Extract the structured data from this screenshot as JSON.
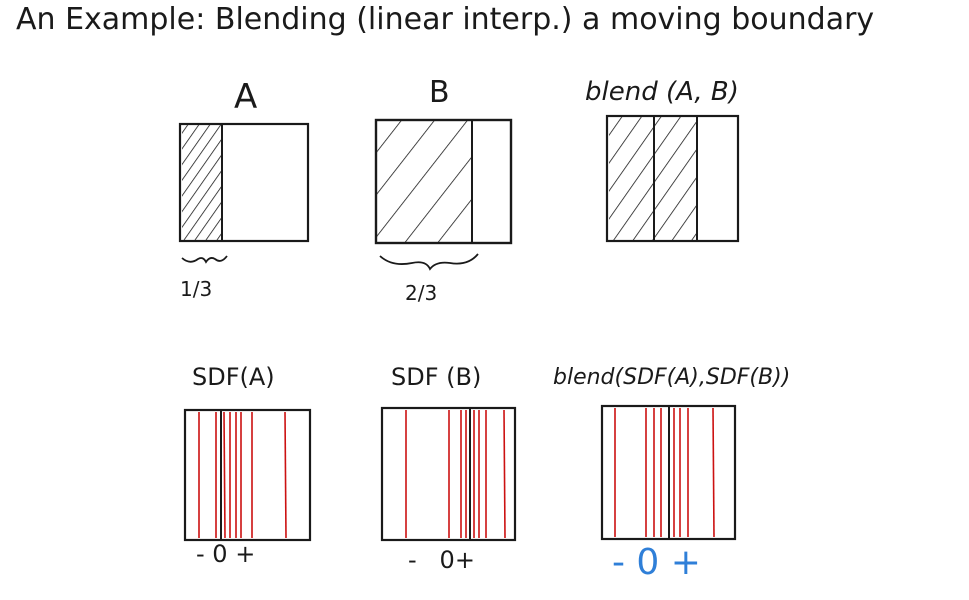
{
  "slide": {
    "title": "An Example: Blending (linear interp.) a moving boundary"
  },
  "row_top": {
    "label_a": "A",
    "label_b": "B",
    "label_blend": "blend (A, B)",
    "fraction_a": "1/3",
    "fraction_b": "2/3"
  },
  "row_bottom": {
    "label_sdf_a": "SDF(A)",
    "label_sdf_b": "SDF (B)",
    "label_blend_sdf": "blend(SDF(A),SDF(B))",
    "signs_a": "- 0 +",
    "signs_b": "-   0+",
    "signs_blend": "- 0 +"
  },
  "colors": {
    "ink": "#1a1a1a",
    "red_lines": "#cc1111",
    "blue_signs": "#2f7fd8"
  }
}
